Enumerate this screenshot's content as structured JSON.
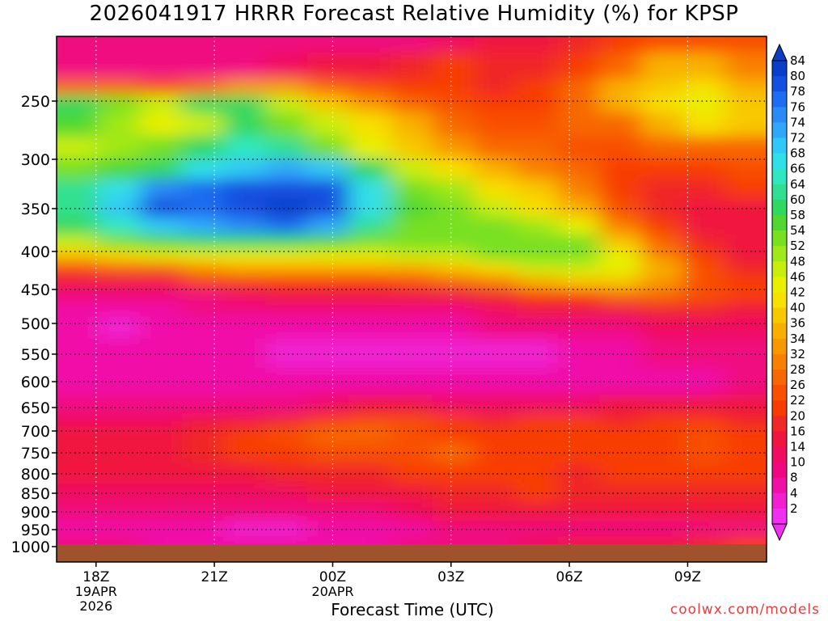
{
  "title": "2026041917 HRRR Forecast Relative Humidity (%) for KPSP",
  "credit": "coolwx.com/models",
  "colors": {
    "credit": "#e04040",
    "ground": "#a0522d"
  },
  "chart_data": {
    "type": "heatmap",
    "title": "2026041917 HRRR Forecast Relative Humidity (%) for KPSP",
    "xlabel": "Forecast Time (UTC)",
    "ylabel": "",
    "x_ticks": [
      {
        "label": "18Z",
        "sub": [
          "19APR",
          "2026"
        ],
        "hour": 18
      },
      {
        "label": "21Z",
        "sub": [],
        "hour": 21
      },
      {
        "label": "00Z",
        "sub": [
          "20APR"
        ],
        "hour": 24
      },
      {
        "label": "03Z",
        "sub": [],
        "hour": 27
      },
      {
        "label": "06Z",
        "sub": [],
        "hour": 30
      },
      {
        "label": "09Z",
        "sub": [],
        "hour": 33
      }
    ],
    "xlim": [
      17,
      35
    ],
    "y_ticks": [
      250,
      300,
      350,
      400,
      450,
      500,
      550,
      600,
      650,
      700,
      750,
      800,
      850,
      900,
      950,
      1000
    ],
    "ylim": [
      200,
      1030
    ],
    "grid": true,
    "colorbar": {
      "labels": [
        84,
        80,
        78,
        76,
        74,
        72,
        68,
        66,
        64,
        60,
        58,
        54,
        52,
        48,
        46,
        42,
        40,
        36,
        34,
        32,
        28,
        26,
        22,
        20,
        16,
        14,
        10,
        8,
        4,
        2
      ],
      "colors": [
        "#0a3ec8",
        "#1450e0",
        "#1e6cf0",
        "#2a8af6",
        "#30a8fa",
        "#30c8f8",
        "#30e0e8",
        "#30e8c0",
        "#30e090",
        "#30d860",
        "#50d830",
        "#78e020",
        "#a0e818",
        "#c8ee10",
        "#e8f000",
        "#f8e000",
        "#f8c800",
        "#f8b000",
        "#f89800",
        "#f88000",
        "#f86800",
        "#f85000",
        "#f83c00",
        "#f02828",
        "#f01440",
        "#f00c60",
        "#f00880",
        "#f010a8",
        "#f020d0",
        "#f030f0"
      ]
    },
    "rh_field": [
      {
        "p": 200,
        "rh": [
          10,
          10,
          10,
          10,
          10,
          10,
          10,
          10,
          10,
          14,
          16,
          18,
          20,
          24,
          26,
          26,
          26
        ]
      },
      {
        "p": 225,
        "rh": [
          10,
          10,
          10,
          10,
          10,
          14,
          16,
          18,
          20,
          22,
          20,
          20,
          24,
          30,
          36,
          36,
          32
        ]
      },
      {
        "p": 240,
        "rh": [
          30,
          28,
          26,
          30,
          34,
          34,
          30,
          26,
          24,
          22,
          20,
          22,
          30,
          36,
          40,
          42,
          38
        ]
      },
      {
        "p": 250,
        "rh": [
          62,
          56,
          50,
          60,
          62,
          48,
          40,
          34,
          30,
          26,
          22,
          24,
          30,
          36,
          42,
          46,
          40
        ]
      },
      {
        "p": 270,
        "rh": [
          58,
          52,
          46,
          50,
          62,
          56,
          50,
          42,
          36,
          30,
          26,
          26,
          28,
          30,
          38,
          44,
          40
        ]
      },
      {
        "p": 290,
        "rh": [
          50,
          52,
          54,
          62,
          66,
          64,
          56,
          46,
          40,
          34,
          30,
          28,
          26,
          26,
          28,
          30,
          30
        ]
      },
      {
        "p": 310,
        "rh": [
          56,
          58,
          62,
          68,
          72,
          74,
          72,
          60,
          50,
          42,
          36,
          32,
          28,
          24,
          22,
          24,
          26
        ]
      },
      {
        "p": 330,
        "rh": [
          64,
          70,
          76,
          78,
          80,
          82,
          80,
          68,
          56,
          52,
          44,
          40,
          32,
          24,
          20,
          20,
          22
        ]
      },
      {
        "p": 350,
        "rh": [
          64,
          72,
          80,
          78,
          80,
          84,
          82,
          70,
          58,
          56,
          50,
          44,
          36,
          26,
          20,
          18,
          18
        ]
      },
      {
        "p": 370,
        "rh": [
          62,
          66,
          72,
          74,
          76,
          78,
          74,
          64,
          56,
          56,
          54,
          52,
          46,
          32,
          22,
          18,
          16
        ]
      },
      {
        "p": 390,
        "rh": [
          50,
          54,
          58,
          60,
          60,
          60,
          58,
          56,
          54,
          54,
          56,
          56,
          54,
          40,
          28,
          20,
          16
        ]
      },
      {
        "p": 405,
        "rh": [
          40,
          44,
          46,
          46,
          46,
          46,
          46,
          46,
          48,
          50,
          54,
          56,
          56,
          46,
          32,
          22,
          18
        ]
      },
      {
        "p": 420,
        "rh": [
          26,
          28,
          30,
          34,
          36,
          36,
          36,
          36,
          38,
          40,
          44,
          48,
          50,
          46,
          36,
          26,
          20
        ]
      },
      {
        "p": 440,
        "rh": [
          16,
          16,
          18,
          22,
          24,
          24,
          24,
          24,
          26,
          28,
          32,
          36,
          40,
          40,
          34,
          26,
          22
        ]
      },
      {
        "p": 460,
        "rh": [
          10,
          10,
          10,
          12,
          14,
          16,
          16,
          16,
          16,
          18,
          20,
          22,
          24,
          28,
          30,
          26,
          22
        ]
      },
      {
        "p": 480,
        "rh": [
          8,
          8,
          8,
          10,
          10,
          10,
          10,
          10,
          10,
          12,
          14,
          16,
          16,
          18,
          20,
          20,
          18
        ]
      },
      {
        "p": 500,
        "rh": [
          8,
          6,
          8,
          8,
          8,
          8,
          8,
          8,
          8,
          8,
          10,
          10,
          12,
          12,
          14,
          14,
          14
        ]
      },
      {
        "p": 550,
        "rh": [
          8,
          8,
          8,
          8,
          8,
          6,
          4,
          4,
          6,
          6,
          6,
          6,
          8,
          8,
          10,
          10,
          10
        ]
      },
      {
        "p": 600,
        "rh": [
          8,
          8,
          8,
          8,
          8,
          8,
          8,
          8,
          8,
          8,
          8,
          8,
          8,
          8,
          8,
          8,
          10
        ]
      },
      {
        "p": 650,
        "rh": [
          10,
          10,
          10,
          10,
          10,
          12,
          14,
          16,
          16,
          14,
          14,
          14,
          14,
          16,
          16,
          16,
          16
        ]
      },
      {
        "p": 680,
        "rh": [
          14,
          14,
          14,
          16,
          18,
          20,
          22,
          26,
          26,
          22,
          20,
          22,
          22,
          20,
          22,
          22,
          20
        ]
      },
      {
        "p": 700,
        "rh": [
          16,
          16,
          18,
          20,
          24,
          26,
          28,
          28,
          26,
          24,
          24,
          24,
          24,
          22,
          24,
          26,
          24
        ]
      },
      {
        "p": 750,
        "rh": [
          16,
          16,
          18,
          20,
          22,
          24,
          26,
          26,
          26,
          28,
          24,
          24,
          22,
          22,
          24,
          26,
          24
        ]
      },
      {
        "p": 800,
        "rh": [
          16,
          16,
          16,
          16,
          18,
          20,
          20,
          20,
          22,
          24,
          22,
          22,
          20,
          22,
          22,
          22,
          22
        ]
      },
      {
        "p": 850,
        "rh": [
          14,
          14,
          14,
          14,
          14,
          14,
          16,
          16,
          18,
          20,
          20,
          22,
          20,
          20,
          20,
          20,
          20
        ]
      },
      {
        "p": 900,
        "rh": [
          10,
          10,
          10,
          10,
          12,
          12,
          12,
          12,
          14,
          16,
          16,
          16,
          16,
          16,
          16,
          16,
          16
        ]
      },
      {
        "p": 950,
        "rh": [
          8,
          8,
          8,
          8,
          6,
          6,
          8,
          8,
          8,
          10,
          10,
          10,
          10,
          10,
          10,
          10,
          10
        ]
      },
      {
        "p": 990,
        "rh": [
          10,
          10,
          8,
          8,
          8,
          8,
          8,
          8,
          10,
          10,
          12,
          14,
          16,
          16,
          18,
          20,
          22
        ]
      }
    ]
  }
}
